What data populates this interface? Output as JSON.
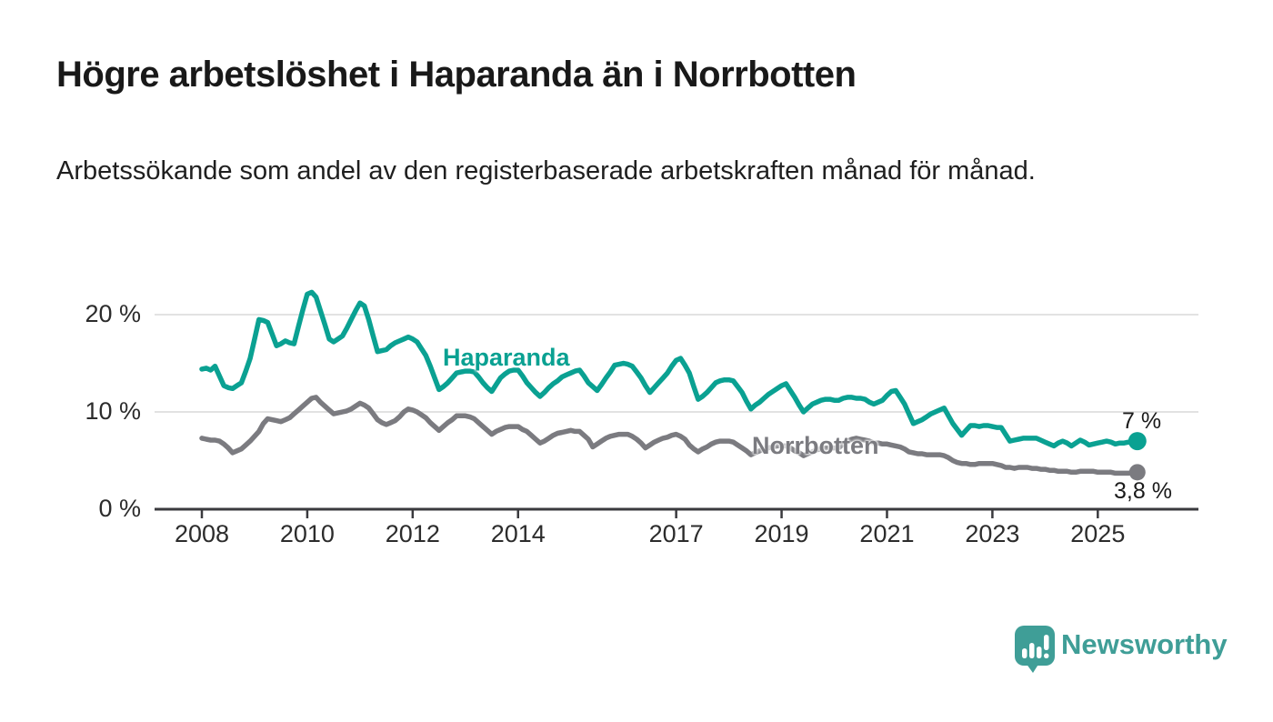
{
  "colors": {
    "haparanda": "#0aa192",
    "norrbotten": "#7b7b80",
    "grid": "#d9d9d9",
    "axis": "#3a3a3e",
    "tick_text": "#2c2c2c",
    "title_text": "#191919",
    "logo_teal": "#3f9e97"
  },
  "header": {
    "title": "Högre arbetslöshet i Haparanda än i Norrbotten",
    "subtitle": "Arbetssökande som andel av den registerbaserade arbetskraften månad för månad."
  },
  "branding": {
    "logo_text": "Newsworthy",
    "logo_icon": "speech-bubble-with-bar-chart-and-exclamation"
  },
  "chart_data": {
    "type": "line",
    "x_unit": "month",
    "x_start": "2008-01",
    "x_end": "2025-10",
    "ylim": [
      0,
      23
    ],
    "grid": "horizontal",
    "yticks": [
      {
        "value": 0,
        "label": "0 %"
      },
      {
        "value": 10,
        "label": "10 %"
      },
      {
        "value": 20,
        "label": "20 %"
      }
    ],
    "xticks": [
      {
        "value": 2008,
        "label": "2008"
      },
      {
        "value": 2010,
        "label": "2010"
      },
      {
        "value": 2012,
        "label": "2012"
      },
      {
        "value": 2014,
        "label": "2014"
      },
      {
        "value": 2017,
        "label": "2017"
      },
      {
        "value": 2019,
        "label": "2019"
      },
      {
        "value": 2021,
        "label": "2021"
      },
      {
        "value": 2023,
        "label": "2023"
      },
      {
        "value": 2025,
        "label": "2025"
      }
    ],
    "series": [
      {
        "name": "Haparanda",
        "color": "#0aa192",
        "end_label": "7 %",
        "values": [
          14.4,
          14.5,
          14.3,
          14.7,
          13.7,
          12.7,
          12.5,
          12.4,
          12.7,
          13.0,
          14.2,
          15.5,
          17.5,
          19.5,
          19.4,
          19.2,
          18.0,
          16.8,
          17.0,
          17.3,
          17.1,
          17.0,
          18.8,
          20.5,
          22.1,
          22.3,
          21.8,
          20.4,
          19.0,
          17.5,
          17.2,
          17.5,
          17.8,
          18.6,
          19.5,
          20.4,
          21.2,
          20.9,
          19.5,
          17.8,
          16.2,
          16.3,
          16.4,
          16.8,
          17.1,
          17.3,
          17.5,
          17.7,
          17.5,
          17.2,
          16.5,
          15.8,
          14.7,
          13.5,
          12.3,
          12.6,
          13.0,
          13.5,
          14.0,
          14.1,
          14.2,
          14.2,
          14.1,
          13.6,
          13.0,
          12.5,
          12.1,
          12.8,
          13.5,
          13.9,
          14.2,
          14.3,
          14.3,
          13.7,
          13.0,
          12.5,
          12.0,
          11.6,
          12.0,
          12.5,
          12.9,
          13.2,
          13.6,
          13.8,
          14.0,
          14.2,
          14.3,
          13.7,
          13.0,
          12.6,
          12.2,
          12.8,
          13.5,
          14.1,
          14.8,
          14.9,
          15.0,
          14.9,
          14.7,
          14.1,
          13.5,
          12.7,
          12.0,
          12.5,
          13.0,
          13.5,
          14.0,
          14.7,
          15.3,
          15.5,
          14.8,
          14.0,
          12.6,
          11.3,
          11.6,
          12.0,
          12.5,
          13.0,
          13.2,
          13.3,
          13.3,
          13.2,
          12.6,
          12.0,
          11.1,
          10.3,
          10.7,
          11.0,
          11.4,
          11.8,
          12.1,
          12.4,
          12.7,
          12.9,
          12.2,
          11.5,
          10.7,
          10.0,
          10.4,
          10.8,
          11.0,
          11.2,
          11.3,
          11.3,
          11.2,
          11.2,
          11.4,
          11.5,
          11.5,
          11.4,
          11.4,
          11.3,
          11.0,
          10.8,
          11.0,
          11.2,
          11.7,
          12.1,
          12.2,
          11.5,
          10.8,
          9.8,
          8.8,
          9.0,
          9.2,
          9.5,
          9.8,
          10.0,
          10.2,
          10.4,
          9.6,
          8.8,
          8.2,
          7.6,
          8.1,
          8.6,
          8.6,
          8.5,
          8.6,
          8.6,
          8.5,
          8.4,
          8.4,
          7.7,
          7.0,
          7.1,
          7.2,
          7.3,
          7.3,
          7.3,
          7.3,
          7.1,
          6.9,
          6.7,
          6.5,
          6.8,
          7.0,
          6.8,
          6.5,
          6.8,
          7.1,
          6.9,
          6.6,
          6.7,
          6.8,
          6.9,
          7.0,
          6.9,
          6.7,
          6.8,
          6.8,
          6.9,
          6.9,
          7.0
        ]
      },
      {
        "name": "Norrbotten",
        "color": "#7b7b80",
        "end_label": "3,8 %",
        "values": [
          7.3,
          7.2,
          7.1,
          7.1,
          7.0,
          6.7,
          6.3,
          5.8,
          6.0,
          6.2,
          6.6,
          7.0,
          7.5,
          8.0,
          8.8,
          9.3,
          9.2,
          9.1,
          9.0,
          9.2,
          9.4,
          9.8,
          10.2,
          10.6,
          11.0,
          11.4,
          11.5,
          11.0,
          10.6,
          10.2,
          9.8,
          9.9,
          10.0,
          10.1,
          10.3,
          10.6,
          10.9,
          10.7,
          10.4,
          9.8,
          9.2,
          8.9,
          8.7,
          8.9,
          9.1,
          9.5,
          10.0,
          10.3,
          10.2,
          10.0,
          9.7,
          9.4,
          8.9,
          8.5,
          8.1,
          8.5,
          8.9,
          9.2,
          9.6,
          9.6,
          9.6,
          9.5,
          9.3,
          8.9,
          8.5,
          8.1,
          7.7,
          8.0,
          8.2,
          8.4,
          8.5,
          8.5,
          8.5,
          8.2,
          8.0,
          7.6,
          7.2,
          6.8,
          7.0,
          7.3,
          7.6,
          7.8,
          7.9,
          8.0,
          8.1,
          8.0,
          8.0,
          7.6,
          7.2,
          6.4,
          6.7,
          7.0,
          7.3,
          7.5,
          7.6,
          7.7,
          7.7,
          7.7,
          7.5,
          7.2,
          6.8,
          6.3,
          6.6,
          6.9,
          7.1,
          7.3,
          7.4,
          7.6,
          7.7,
          7.5,
          7.2,
          6.6,
          6.2,
          5.9,
          6.2,
          6.4,
          6.7,
          6.9,
          7.0,
          7.0,
          7.0,
          6.9,
          6.6,
          6.3,
          6.0,
          5.6,
          5.8,
          6.0,
          6.2,
          6.3,
          6.4,
          6.5,
          6.5,
          6.5,
          6.3,
          6.0,
          5.8,
          5.5,
          5.7,
          5.9,
          6.1,
          6.2,
          6.3,
          6.3,
          6.3,
          6.3,
          6.7,
          7.0,
          7.2,
          7.3,
          7.2,
          7.1,
          7.0,
          6.8,
          6.8,
          6.7,
          6.7,
          6.6,
          6.5,
          6.4,
          6.2,
          5.9,
          5.8,
          5.7,
          5.7,
          5.6,
          5.6,
          5.6,
          5.6,
          5.5,
          5.3,
          5.0,
          4.8,
          4.7,
          4.7,
          4.6,
          4.6,
          4.7,
          4.7,
          4.7,
          4.7,
          4.6,
          4.5,
          4.3,
          4.3,
          4.2,
          4.3,
          4.3,
          4.3,
          4.2,
          4.2,
          4.1,
          4.1,
          4.0,
          4.0,
          3.9,
          3.9,
          3.9,
          3.8,
          3.8,
          3.9,
          3.9,
          3.9,
          3.9,
          3.8,
          3.8,
          3.8,
          3.8,
          3.7,
          3.7,
          3.7,
          3.7,
          3.8,
          3.8
        ]
      }
    ]
  }
}
